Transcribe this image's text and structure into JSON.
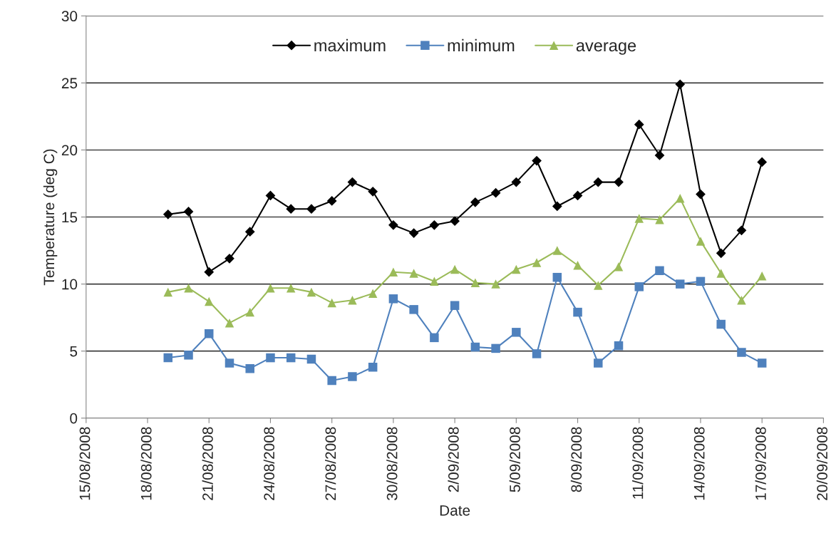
{
  "chart_data": {
    "type": "line",
    "xlabel": "Date",
    "ylabel": "Temperature (deg C)",
    "x": [
      "2008-08-19",
      "2008-08-20",
      "2008-08-21",
      "2008-08-22",
      "2008-08-23",
      "2008-08-24",
      "2008-08-25",
      "2008-08-26",
      "2008-08-27",
      "2008-08-28",
      "2008-08-29",
      "2008-08-30",
      "2008-08-31",
      "2008-09-01",
      "2008-09-02",
      "2008-09-03",
      "2008-09-04",
      "2008-09-05",
      "2008-09-06",
      "2008-09-07",
      "2008-09-08",
      "2008-09-09",
      "2008-09-10",
      "2008-09-11",
      "2008-09-12",
      "2008-09-13",
      "2008-09-14",
      "2008-09-15",
      "2008-09-16",
      "2008-09-17"
    ],
    "series": [
      {
        "name": "maximum",
        "color": "#000000",
        "marker": "diamond",
        "values": [
          15.2,
          15.4,
          10.9,
          11.9,
          13.9,
          16.6,
          15.6,
          15.6,
          16.2,
          17.6,
          16.9,
          14.4,
          13.8,
          14.4,
          14.7,
          16.1,
          16.8,
          17.6,
          19.2,
          15.8,
          16.6,
          17.6,
          17.6,
          21.9,
          19.6,
          24.9,
          16.7,
          12.3,
          14.0,
          19.1
        ]
      },
      {
        "name": "minimum",
        "color": "#4f81bd",
        "marker": "square",
        "values": [
          4.5,
          4.7,
          6.3,
          4.1,
          3.7,
          4.5,
          4.5,
          4.4,
          2.8,
          3.1,
          3.8,
          8.9,
          8.1,
          6.0,
          8.4,
          5.3,
          5.2,
          6.4,
          4.8,
          10.5,
          7.9,
          4.1,
          5.4,
          9.8,
          11.0,
          10.0,
          10.2,
          7.0,
          4.9,
          4.1
        ]
      },
      {
        "name": "average",
        "color": "#9bbb59",
        "marker": "triangle",
        "values": [
          9.4,
          9.7,
          8.7,
          7.1,
          7.9,
          9.7,
          9.7,
          9.4,
          8.6,
          8.8,
          9.3,
          10.9,
          10.8,
          10.2,
          11.1,
          10.1,
          10.0,
          11.1,
          11.6,
          12.5,
          11.4,
          9.9,
          11.3,
          14.9,
          14.8,
          16.4,
          13.2,
          10.8,
          8.8,
          10.6
        ]
      }
    ],
    "xlim": [
      "2008-08-15",
      "2008-09-20"
    ],
    "xticks": [
      {
        "value": "2008-08-15",
        "label": "15/08/2008"
      },
      {
        "value": "2008-08-18",
        "label": "18/08/2008"
      },
      {
        "value": "2008-08-21",
        "label": "21/08/2008"
      },
      {
        "value": "2008-08-24",
        "label": "24/08/2008"
      },
      {
        "value": "2008-08-27",
        "label": "27/08/2008"
      },
      {
        "value": "2008-08-30",
        "label": "30/08/2008"
      },
      {
        "value": "2008-09-02",
        "label": "2/09/2008"
      },
      {
        "value": "2008-09-05",
        "label": "5/09/2008"
      },
      {
        "value": "2008-09-08",
        "label": "8/09/2008"
      },
      {
        "value": "2008-09-11",
        "label": "11/09/2008"
      },
      {
        "value": "2008-09-14",
        "label": "14/09/2008"
      },
      {
        "value": "2008-09-17",
        "label": "17/09/2008"
      },
      {
        "value": "2008-09-20",
        "label": "20/09/2008"
      }
    ],
    "ylim": [
      0,
      30
    ],
    "yticks": [
      0,
      5,
      10,
      15,
      20,
      25,
      30
    ],
    "grid": "y",
    "legend": "top",
    "line_style": "solid"
  }
}
